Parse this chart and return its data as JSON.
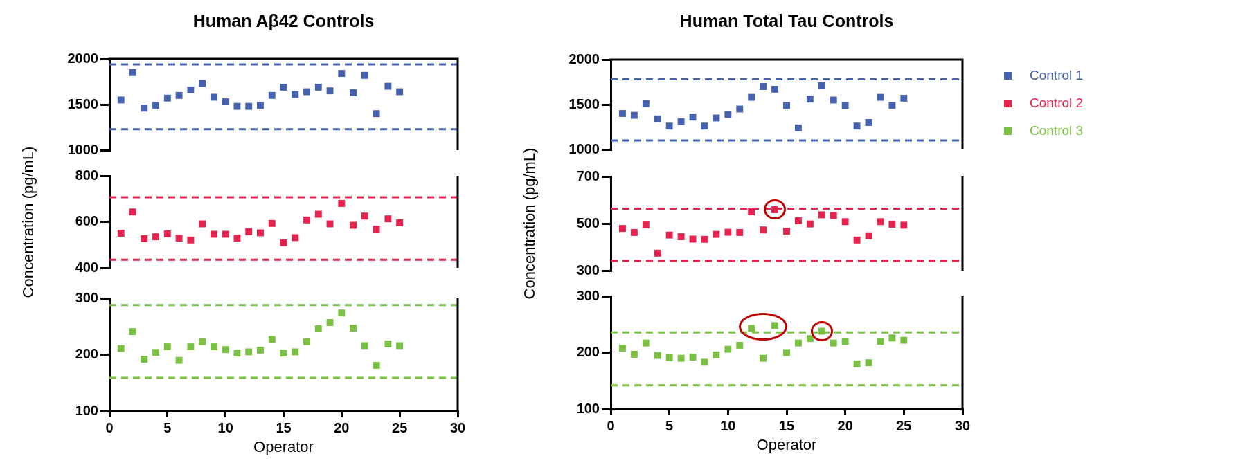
{
  "chart_data": [
    {
      "type": "scatter",
      "title": "Human Aβ42 Controls",
      "x": [
        1,
        2,
        3,
        4,
        5,
        6,
        7,
        8,
        9,
        10,
        11,
        12,
        13,
        14,
        15,
        16,
        17,
        18,
        19,
        20,
        21,
        22,
        23,
        24,
        25
      ],
      "series": [
        {
          "color": "#4763b0",
          "values": [
            1550,
            1850,
            1460,
            1490,
            1570,
            1600,
            1660,
            1730,
            1580,
            1530,
            1480,
            1480,
            1490,
            1600,
            1690,
            1610,
            1640,
            1690,
            1650,
            1840,
            1630,
            1820,
            1400,
            1700,
            1640
          ]
        }
      ],
      "xlim": [
        0,
        30
      ],
      "ylim": [
        1000,
        2000
      ],
      "yticks": [
        1000,
        1500,
        2000
      ],
      "tick_labels": "y",
      "marker": "square",
      "ref_lines": [
        {
          "axis": "y",
          "value": 1940,
          "color": "#4763b0",
          "line_style": "dashed"
        },
        {
          "axis": "y",
          "value": 1230,
          "color": "#4763b0",
          "line_style": "dashed"
        }
      ]
    },
    {
      "type": "scatter",
      "ylabel": "Concentration (pg/mL)",
      "x": [
        1,
        2,
        3,
        4,
        5,
        6,
        7,
        8,
        9,
        10,
        11,
        12,
        13,
        14,
        15,
        16,
        17,
        18,
        19,
        20,
        21,
        22,
        23,
        24,
        25
      ],
      "series": [
        {
          "color": "#e4234e",
          "values": [
            550,
            643,
            527,
            535,
            548,
            529,
            521,
            591,
            546,
            546,
            529,
            557,
            552,
            593,
            509,
            531,
            608,
            633,
            591,
            680,
            585,
            625,
            568,
            613,
            596
          ]
        }
      ],
      "xlim": [
        0,
        30
      ],
      "ylim": [
        400,
        800
      ],
      "yticks": [
        400,
        600,
        800
      ],
      "tick_labels": "y",
      "marker": "square",
      "ref_lines": [
        {
          "axis": "y",
          "value": 707,
          "color": "#e4234e",
          "line_style": "dashed"
        },
        {
          "axis": "y",
          "value": 435,
          "color": "#e4234e",
          "line_style": "dashed"
        }
      ]
    },
    {
      "type": "scatter",
      "xlabel": "Operator",
      "x": [
        1,
        2,
        3,
        4,
        5,
        6,
        7,
        8,
        9,
        10,
        11,
        12,
        13,
        14,
        15,
        16,
        17,
        18,
        19,
        20,
        21,
        22,
        23,
        24,
        25
      ],
      "series": [
        {
          "color": "#7ac143",
          "values": [
            211,
            241,
            192,
            204,
            214,
            190,
            214,
            223,
            214,
            209,
            203,
            205,
            208,
            227,
            203,
            205,
            223,
            246,
            257,
            274,
            247,
            216,
            181,
            219,
            216
          ]
        }
      ],
      "xlim": [
        0,
        30
      ],
      "xticks": [
        0,
        5,
        10,
        15,
        20,
        25,
        30
      ],
      "ylim": [
        100,
        300
      ],
      "yticks": [
        100,
        200,
        300
      ],
      "marker": "square",
      "ref_lines": [
        {
          "axis": "y",
          "value": 288,
          "color": "#7ac143",
          "line_style": "dashed"
        },
        {
          "axis": "y",
          "value": 159,
          "color": "#7ac143",
          "line_style": "dashed"
        }
      ]
    },
    {
      "type": "scatter",
      "title": "Human Total Tau Controls",
      "legend": "right",
      "x": [
        1,
        2,
        3,
        4,
        5,
        6,
        7,
        8,
        9,
        10,
        11,
        12,
        13,
        14,
        15,
        16,
        17,
        18,
        19,
        20,
        21,
        22,
        23,
        24,
        25
      ],
      "series": [
        {
          "name": "Control 1",
          "color": "#4763b0",
          "values": [
            1400,
            1380,
            1510,
            1340,
            1260,
            1310,
            1360,
            1260,
            1350,
            1390,
            1450,
            1580,
            1700,
            1670,
            1490,
            1240,
            1560,
            1710,
            1550,
            1490,
            1260,
            1300,
            1580,
            1490,
            1570
          ]
        }
      ],
      "xlim": [
        0,
        30
      ],
      "ylim": [
        1000,
        2000
      ],
      "yticks": [
        1000,
        1500,
        2000
      ],
      "tick_labels": "y",
      "marker": "square",
      "ref_lines": [
        {
          "axis": "y",
          "value": 1780,
          "color": "#4763b0",
          "line_style": "dashed"
        },
        {
          "axis": "y",
          "value": 1100,
          "color": "#4763b0",
          "line_style": "dashed"
        }
      ]
    },
    {
      "type": "scatter",
      "ylabel": "Concentration (pg/mL)",
      "legend": "right",
      "x": [
        1,
        2,
        3,
        4,
        5,
        6,
        7,
        8,
        9,
        10,
        11,
        12,
        13,
        14,
        15,
        16,
        17,
        18,
        19,
        20,
        21,
        22,
        23,
        24,
        25
      ],
      "series": [
        {
          "name": "Control 2",
          "color": "#e4234e",
          "values": [
            479,
            462,
            494,
            374,
            451,
            444,
            434,
            433,
            454,
            463,
            462,
            550,
            473,
            559,
            467,
            512,
            498,
            537,
            534,
            508,
            430,
            448,
            508,
            497,
            493
          ]
        }
      ],
      "xlim": [
        0,
        30
      ],
      "ylim": [
        300,
        700
      ],
      "yticks": [
        300,
        500,
        700
      ],
      "tick_labels": "y",
      "marker": "square",
      "ref_lines": [
        {
          "axis": "y",
          "value": 563,
          "color": "#e4234e",
          "line_style": "dashed"
        },
        {
          "axis": "y",
          "value": 341,
          "color": "#e4234e",
          "line_style": "dashed"
        }
      ]
    },
    {
      "type": "scatter",
      "xlabel": "Operator",
      "legend": "right",
      "x": [
        1,
        2,
        3,
        4,
        5,
        6,
        7,
        8,
        9,
        10,
        11,
        12,
        13,
        14,
        15,
        16,
        17,
        18,
        19,
        20,
        21,
        22,
        23,
        24,
        25
      ],
      "series": [
        {
          "name": "Control 3",
          "color": "#7ac143",
          "values": [
            208,
            197,
            217,
            195,
            191,
            190,
            192,
            183,
            196,
            206,
            213,
            243,
            190,
            248,
            200,
            217,
            225,
            238,
            217,
            220,
            180,
            182,
            220,
            226,
            222
          ]
        }
      ],
      "xlim": [
        0,
        30
      ],
      "xticks": [
        0,
        5,
        10,
        15,
        20,
        25,
        30
      ],
      "ylim": [
        100,
        300
      ],
      "yticks": [
        100,
        200,
        300
      ],
      "marker": "square",
      "ref_lines": [
        {
          "axis": "y",
          "value": 236,
          "color": "#7ac143",
          "line_style": "dashed"
        },
        {
          "axis": "y",
          "value": 142,
          "color": "#7ac143",
          "line_style": "dashed"
        }
      ]
    }
  ]
}
